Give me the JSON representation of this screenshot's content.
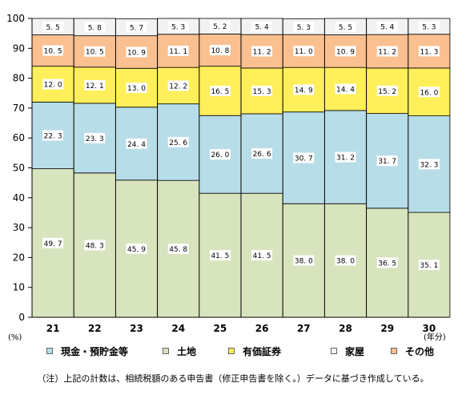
{
  "chart_data": {
    "type": "bar",
    "stacked": true,
    "categories": [
      "21",
      "22",
      "23",
      "24",
      "25",
      "26",
      "27",
      "28",
      "29",
      "30"
    ],
    "series": [
      {
        "name": "現金・預貯金等",
        "color": "#b7dde8",
        "values": [
          22.3,
          23.3,
          24.4,
          25.6,
          26.0,
          26.6,
          30.7,
          31.2,
          31.7,
          32.3
        ]
      },
      {
        "name": "土地",
        "color": "#d7e4bd",
        "values": [
          49.7,
          48.3,
          45.9,
          45.8,
          41.5,
          41.5,
          38.0,
          38.0,
          36.5,
          35.1
        ]
      },
      {
        "name": "有価証券",
        "color": "#ffef5a",
        "values": [
          12.0,
          12.1,
          13.0,
          12.2,
          16.5,
          15.3,
          14.9,
          14.4,
          15.2,
          16.0
        ]
      },
      {
        "name": "家屋",
        "color": "#f2f2f2",
        "values": [
          5.5,
          5.8,
          5.7,
          5.3,
          5.2,
          5.4,
          5.3,
          5.5,
          5.4,
          5.3
        ]
      },
      {
        "name": "その他",
        "color": "#fac090",
        "values": [
          10.5,
          10.5,
          10.9,
          11.1,
          10.8,
          11.2,
          11.0,
          10.9,
          11.2,
          11.3
        ]
      }
    ],
    "stack_order_bottom_to_top": [
      "土地",
      "現金・預貯金等",
      "有価証券",
      "その他",
      "家屋"
    ],
    "ylim": [
      0,
      100
    ],
    "yticks": [
      0,
      10,
      20,
      30,
      40,
      50,
      60,
      70,
      80,
      90,
      100
    ],
    "ylabel": "(%)",
    "xlabel": "(年分)",
    "legend_position": "bottom",
    "grid": false
  },
  "footnote": "（注）上記の計数は、相続税額のある申告書（修正申告書を除く。）データに基づき作成している。"
}
